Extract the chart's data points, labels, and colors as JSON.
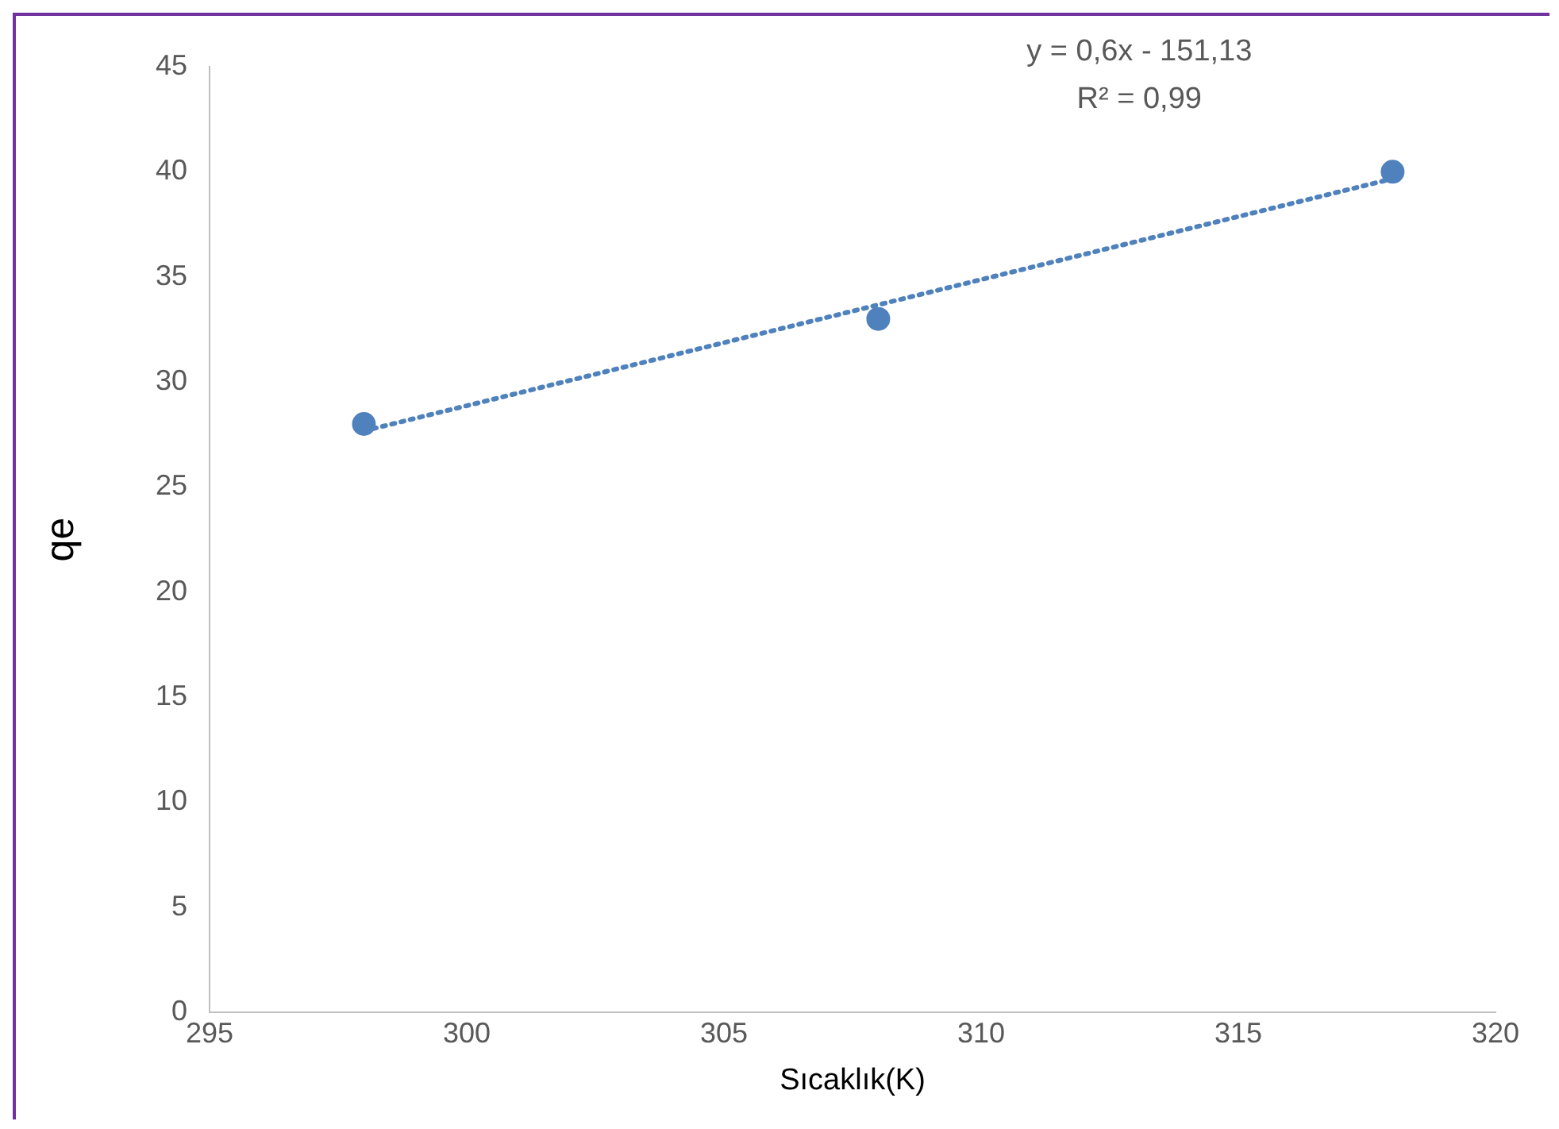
{
  "chart_data": {
    "type": "scatter",
    "xlabel": "Sıcaklık(K)",
    "ylabel": "qe",
    "annotations": [
      "y = 0,6x - 151,13",
      "R² = 0,99"
    ],
    "xlim": [
      295,
      320
    ],
    "xticks": [
      295,
      300,
      305,
      310,
      315,
      320
    ],
    "ylim": [
      0,
      45
    ],
    "yticks": [
      0,
      5,
      10,
      15,
      20,
      25,
      30,
      35,
      40,
      45
    ],
    "series": [
      {
        "color": "#4f81bd",
        "x": [
          298,
          308,
          318
        ],
        "values": [
          28,
          33,
          40
        ],
        "marker": "circle"
      },
      {
        "type": "line",
        "color": "#4f81bd",
        "x": [
          298,
          318
        ],
        "values": [
          27.67,
          39.67
        ],
        "marker": "none",
        "line_style": "dotted"
      }
    ]
  }
}
